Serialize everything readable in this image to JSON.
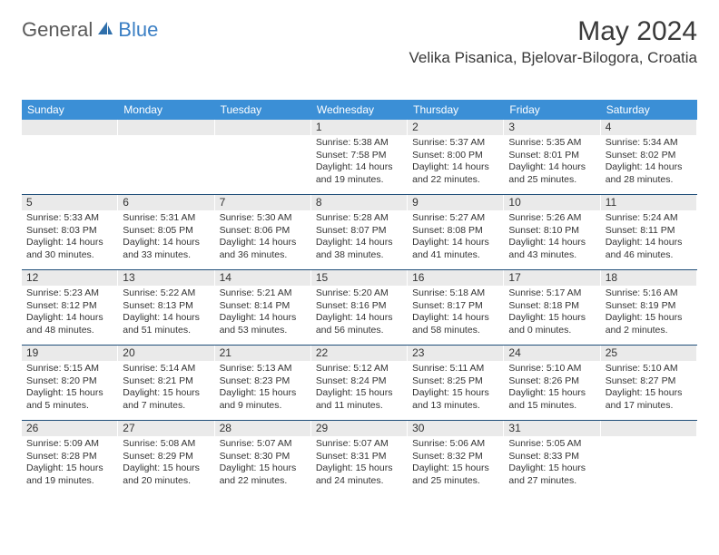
{
  "brand": {
    "part1": "General",
    "part2": "Blue"
  },
  "title": {
    "monthYear": "May 2024",
    "location": "Velika Pisanica, Bjelovar-Bilogora, Croatia"
  },
  "colors": {
    "headerBg": "#3b8fd6",
    "rowDivider": "#1f4e79",
    "dayBg": "#eaeaea",
    "text": "#333333",
    "brandGray": "#5a5a5a",
    "brandBlue": "#3b7fc4"
  },
  "dayNames": [
    "Sunday",
    "Monday",
    "Tuesday",
    "Wednesday",
    "Thursday",
    "Friday",
    "Saturday"
  ],
  "weeks": [
    [
      null,
      null,
      null,
      {
        "n": "1",
        "sr": "5:38 AM",
        "ss": "7:58 PM",
        "dl": "14 hours and 19 minutes."
      },
      {
        "n": "2",
        "sr": "5:37 AM",
        "ss": "8:00 PM",
        "dl": "14 hours and 22 minutes."
      },
      {
        "n": "3",
        "sr": "5:35 AM",
        "ss": "8:01 PM",
        "dl": "14 hours and 25 minutes."
      },
      {
        "n": "4",
        "sr": "5:34 AM",
        "ss": "8:02 PM",
        "dl": "14 hours and 28 minutes."
      }
    ],
    [
      {
        "n": "5",
        "sr": "5:33 AM",
        "ss": "8:03 PM",
        "dl": "14 hours and 30 minutes."
      },
      {
        "n": "6",
        "sr": "5:31 AM",
        "ss": "8:05 PM",
        "dl": "14 hours and 33 minutes."
      },
      {
        "n": "7",
        "sr": "5:30 AM",
        "ss": "8:06 PM",
        "dl": "14 hours and 36 minutes."
      },
      {
        "n": "8",
        "sr": "5:28 AM",
        "ss": "8:07 PM",
        "dl": "14 hours and 38 minutes."
      },
      {
        "n": "9",
        "sr": "5:27 AM",
        "ss": "8:08 PM",
        "dl": "14 hours and 41 minutes."
      },
      {
        "n": "10",
        "sr": "5:26 AM",
        "ss": "8:10 PM",
        "dl": "14 hours and 43 minutes."
      },
      {
        "n": "11",
        "sr": "5:24 AM",
        "ss": "8:11 PM",
        "dl": "14 hours and 46 minutes."
      }
    ],
    [
      {
        "n": "12",
        "sr": "5:23 AM",
        "ss": "8:12 PM",
        "dl": "14 hours and 48 minutes."
      },
      {
        "n": "13",
        "sr": "5:22 AM",
        "ss": "8:13 PM",
        "dl": "14 hours and 51 minutes."
      },
      {
        "n": "14",
        "sr": "5:21 AM",
        "ss": "8:14 PM",
        "dl": "14 hours and 53 minutes."
      },
      {
        "n": "15",
        "sr": "5:20 AM",
        "ss": "8:16 PM",
        "dl": "14 hours and 56 minutes."
      },
      {
        "n": "16",
        "sr": "5:18 AM",
        "ss": "8:17 PM",
        "dl": "14 hours and 58 minutes."
      },
      {
        "n": "17",
        "sr": "5:17 AM",
        "ss": "8:18 PM",
        "dl": "15 hours and 0 minutes."
      },
      {
        "n": "18",
        "sr": "5:16 AM",
        "ss": "8:19 PM",
        "dl": "15 hours and 2 minutes."
      }
    ],
    [
      {
        "n": "19",
        "sr": "5:15 AM",
        "ss": "8:20 PM",
        "dl": "15 hours and 5 minutes."
      },
      {
        "n": "20",
        "sr": "5:14 AM",
        "ss": "8:21 PM",
        "dl": "15 hours and 7 minutes."
      },
      {
        "n": "21",
        "sr": "5:13 AM",
        "ss": "8:23 PM",
        "dl": "15 hours and 9 minutes."
      },
      {
        "n": "22",
        "sr": "5:12 AM",
        "ss": "8:24 PM",
        "dl": "15 hours and 11 minutes."
      },
      {
        "n": "23",
        "sr": "5:11 AM",
        "ss": "8:25 PM",
        "dl": "15 hours and 13 minutes."
      },
      {
        "n": "24",
        "sr": "5:10 AM",
        "ss": "8:26 PM",
        "dl": "15 hours and 15 minutes."
      },
      {
        "n": "25",
        "sr": "5:10 AM",
        "ss": "8:27 PM",
        "dl": "15 hours and 17 minutes."
      }
    ],
    [
      {
        "n": "26",
        "sr": "5:09 AM",
        "ss": "8:28 PM",
        "dl": "15 hours and 19 minutes."
      },
      {
        "n": "27",
        "sr": "5:08 AM",
        "ss": "8:29 PM",
        "dl": "15 hours and 20 minutes."
      },
      {
        "n": "28",
        "sr": "5:07 AM",
        "ss": "8:30 PM",
        "dl": "15 hours and 22 minutes."
      },
      {
        "n": "29",
        "sr": "5:07 AM",
        "ss": "8:31 PM",
        "dl": "15 hours and 24 minutes."
      },
      {
        "n": "30",
        "sr": "5:06 AM",
        "ss": "8:32 PM",
        "dl": "15 hours and 25 minutes."
      },
      {
        "n": "31",
        "sr": "5:05 AM",
        "ss": "8:33 PM",
        "dl": "15 hours and 27 minutes."
      },
      null
    ]
  ],
  "labels": {
    "sunrise": "Sunrise:",
    "sunset": "Sunset:",
    "daylight": "Daylight:"
  }
}
